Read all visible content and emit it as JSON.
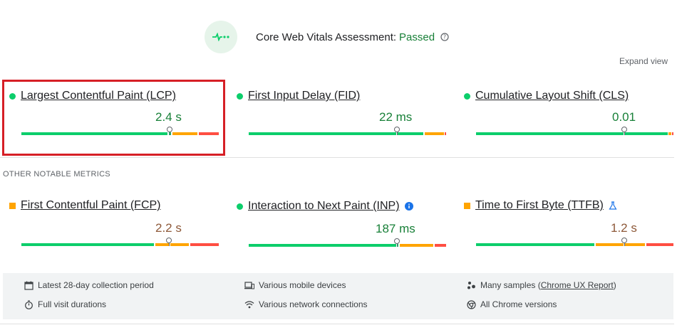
{
  "assessment": {
    "title": "Core Web Vitals Assessment:",
    "status": "Passed",
    "expand_label": "Expand view",
    "status_color": "#188038"
  },
  "core_metrics": [
    {
      "name": "Largest Contentful Paint (LCP)",
      "value": "2.4 s",
      "rating": "good",
      "highlighted": true
    },
    {
      "name": "First Input Delay (FID)",
      "value": "22 ms",
      "rating": "good"
    },
    {
      "name": "Cumulative Layout Shift (CLS)",
      "value": "0.01",
      "rating": "good"
    }
  ],
  "other_section_label": "OTHER NOTABLE METRICS",
  "other_metrics": [
    {
      "name": "First Contentful Paint (FCP)",
      "value": "2.2 s",
      "rating": "needs-improvement"
    },
    {
      "name": "Interaction to Next Paint (INP)",
      "value": "187 ms",
      "rating": "good",
      "icon": "info-icon"
    },
    {
      "name": "Time to First Byte (TTFB)",
      "value": "1.2 s",
      "rating": "needs-improvement",
      "icon": "experimental-flask-icon"
    }
  ],
  "footer": {
    "collection_period": "Latest 28-day collection period",
    "visit_durations": "Full visit durations",
    "devices": "Various mobile devices",
    "network": "Various network connections",
    "samples_prefix": "Many samples (",
    "samples_link": "Chrome UX Report",
    "samples_suffix": ")",
    "chrome_versions": "All Chrome versions"
  },
  "colors": {
    "good": "#0cce6b",
    "needs_improvement": "#ffa400",
    "poor": "#ff4e42",
    "highlight_border": "#d61f26"
  }
}
